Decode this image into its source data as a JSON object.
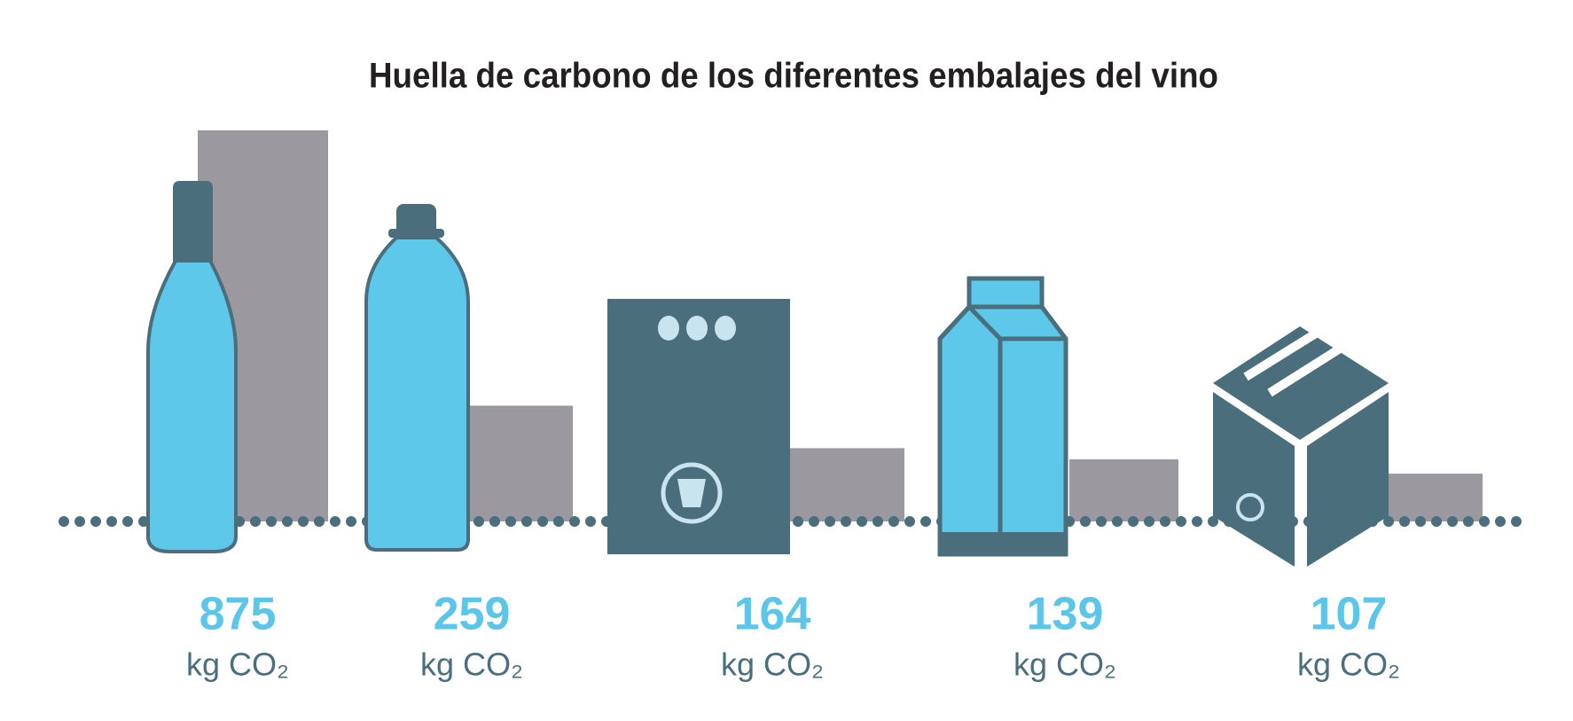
{
  "chart_data": {
    "type": "bar",
    "title": "Huella de carbono de los diferentes embalajes del vino",
    "categories": [
      null,
      null,
      null,
      null,
      null
    ],
    "values": [
      875,
      259,
      164,
      139,
      107
    ],
    "unit": "kg CO₂",
    "color": "#9b98a0",
    "label_color": "#5bc5ea"
  }
}
